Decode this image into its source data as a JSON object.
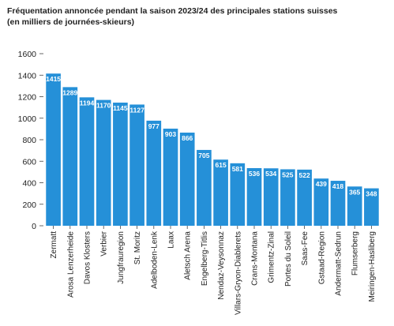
{
  "chart_data": {
    "type": "bar",
    "title": "Fréquentation annoncée pendant la saison 2023/24 des principales stations suisses",
    "subtitle": "(en milliers de journées-skieurs)",
    "categories": [
      "Zermatt",
      "Arosa Lenzerheide",
      "Davos Klosters",
      "Verbier",
      "Jungfrauregion",
      "St. Moritz",
      "Adelboden-Lenk",
      "Laax",
      "Aletsch Arena",
      "Engelberg-Titlis",
      "Nendaz-Veysonnaz",
      "Villars-Gryon-Diablerets",
      "Crans-Montana",
      "Grimentz-Zinal",
      "Portes du Soleil",
      "Saas-Fee",
      "Gstaad-Region",
      "Andermatt-Sedrun",
      "Flumserberg",
      "Meiringen-Hasliberg"
    ],
    "values": [
      1415,
      1289,
      1194,
      1170,
      1145,
      1127,
      977,
      903,
      866,
      705,
      615,
      581,
      536,
      534,
      525,
      522,
      439,
      418,
      365,
      348
    ],
    "ylim": [
      0,
      1600
    ],
    "yticks": [
      0,
      200,
      400,
      600,
      800,
      1000,
      1200,
      1400,
      1600
    ],
    "grid": false,
    "legend": "none",
    "bar_color": "#2590d8",
    "xlabel": "",
    "ylabel": ""
  }
}
